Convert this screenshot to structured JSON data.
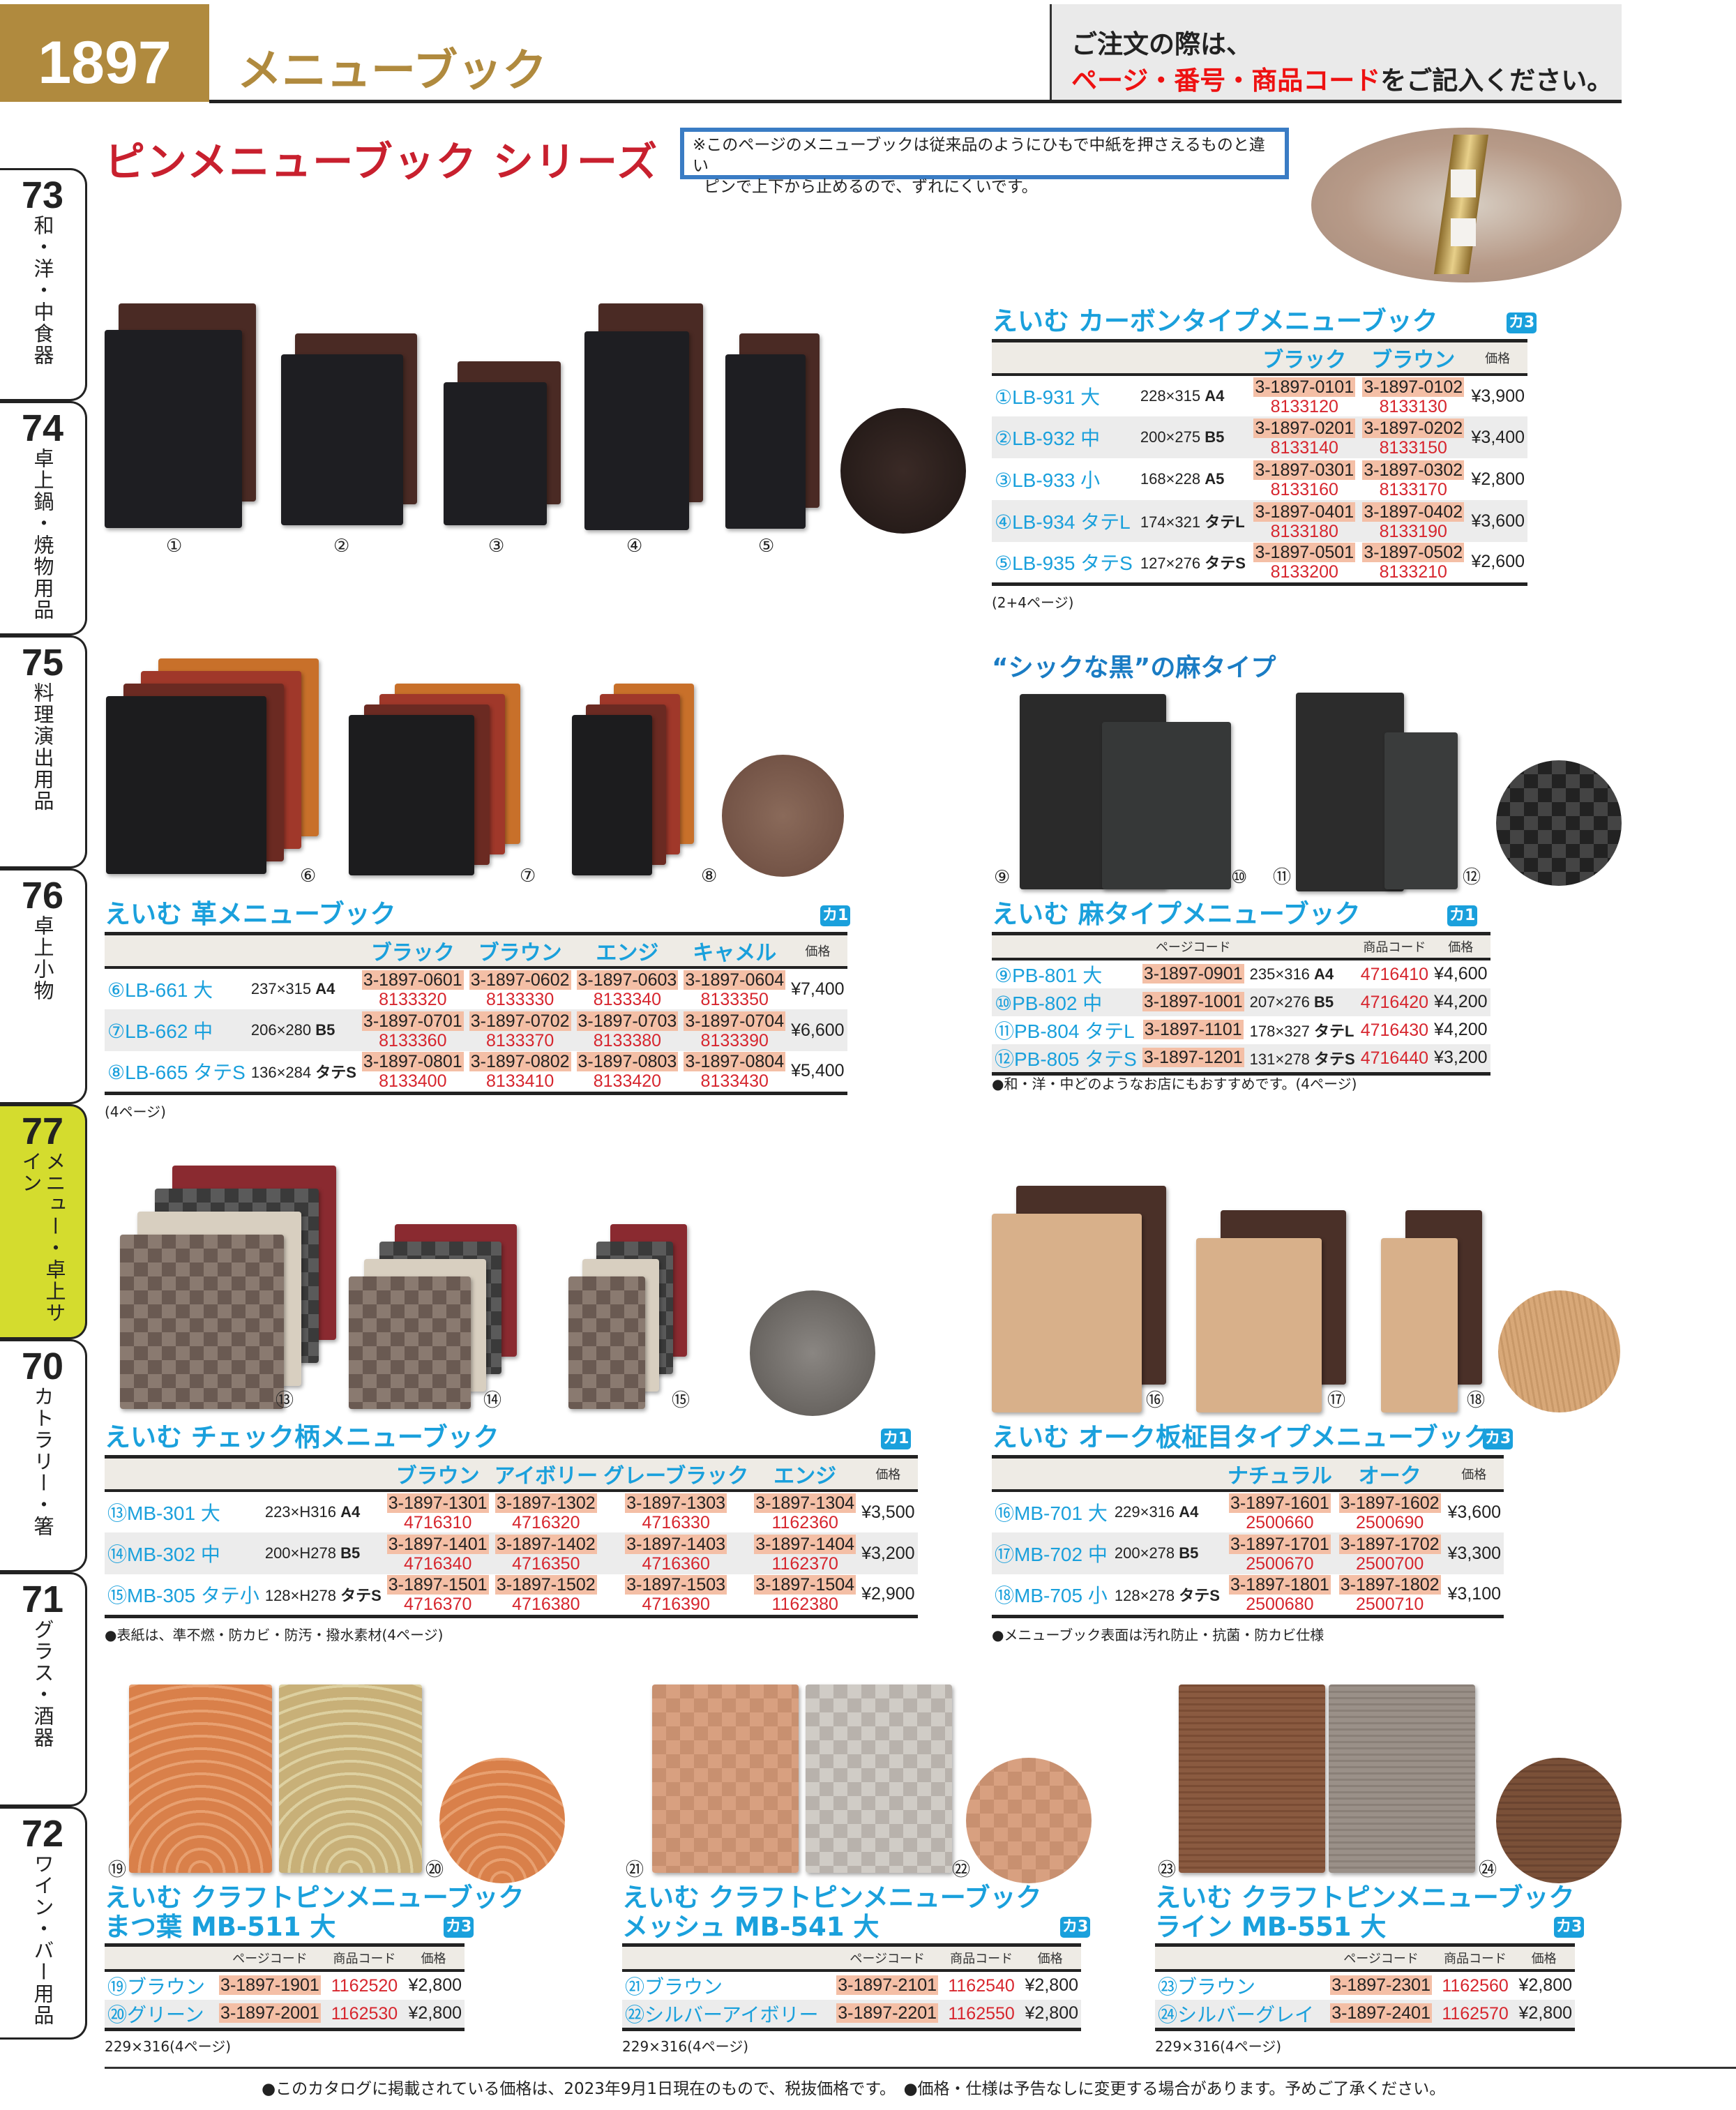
{
  "header": {
    "page_number": "1897",
    "title": "メニューブック",
    "notice_line1": "ご注文の際は、",
    "notice_red": "ページ・番号・商品コード",
    "notice_rest": "をご記入ください。"
  },
  "series": {
    "title": "ピンメニューブック シリーズ",
    "note_line1": "※このページのメニューブックは従来品のようにひもで中紙を押さえるものと違い",
    "note_line2": "ピンで上下から止めるので、ずれにくいです。"
  },
  "side_tabs": [
    {
      "num": "73",
      "label": "和・洋・中食器"
    },
    {
      "num": "74",
      "label": "卓上鍋・焼物用品"
    },
    {
      "num": "75",
      "label": "料理演出用品"
    },
    {
      "num": "76",
      "label": "卓上小物"
    },
    {
      "num": "77",
      "label": "メニュー・卓上サイン",
      "active": true
    },
    {
      "num": "70",
      "label": "カトラリー・箸"
    },
    {
      "num": "71",
      "label": "グラス・酒器"
    },
    {
      "num": "72",
      "label": "ワイン・バー用品"
    }
  ],
  "accent_colors": {
    "title_cyan": "#1aa0dc",
    "code_red": "#d7262e",
    "page_code_bg": "#f4bfa6",
    "gold": "#b08a3e",
    "active_tab": "#d4dc2e"
  },
  "image_labels": [
    "①",
    "②",
    "③",
    "④",
    "⑤",
    "⑥",
    "⑦",
    "⑧",
    "⑨",
    "⑩",
    "⑪",
    "⑫",
    "⑬",
    "⑭",
    "⑮",
    "⑯",
    "⑰",
    "⑱",
    "⑲",
    "⑳",
    "㉑",
    "㉒",
    "㉓",
    "㉔"
  ],
  "linen_heading": "“シックな黒”の麻タイプ",
  "sections": {
    "carbon": {
      "title": "えいむ カーボンタイプメニューブック",
      "badge": "カ3",
      "type": "multi",
      "columns": [
        "ブラック",
        "ブラウン"
      ],
      "price_header": "価格",
      "rows": [
        {
          "no": "①",
          "model": "LB-931 大",
          "size": "228×315",
          "fmt": "A4",
          "codes": [
            [
              "3-1897-0101",
              "8133120"
            ],
            [
              "3-1897-0102",
              "8133130"
            ]
          ],
          "price": "¥3,900"
        },
        {
          "no": "②",
          "model": "LB-932 中",
          "size": "200×275",
          "fmt": "B5",
          "codes": [
            [
              "3-1897-0201",
              "8133140"
            ],
            [
              "3-1897-0202",
              "8133150"
            ]
          ],
          "price": "¥3,400"
        },
        {
          "no": "③",
          "model": "LB-933 小",
          "size": "168×228",
          "fmt": "A5",
          "codes": [
            [
              "3-1897-0301",
              "8133160"
            ],
            [
              "3-1897-0302",
              "8133170"
            ]
          ],
          "price": "¥2,800"
        },
        {
          "no": "④",
          "model": "LB-934 タテL",
          "size": "174×321",
          "fmt": "タテL",
          "codes": [
            [
              "3-1897-0401",
              "8133180"
            ],
            [
              "3-1897-0402",
              "8133190"
            ]
          ],
          "price": "¥3,600"
        },
        {
          "no": "⑤",
          "model": "LB-935 タテS",
          "size": "127×276",
          "fmt": "タテS",
          "codes": [
            [
              "3-1897-0501",
              "8133200"
            ],
            [
              "3-1897-0502",
              "8133210"
            ]
          ],
          "price": "¥2,600"
        }
      ],
      "note": "(2+4ページ)"
    },
    "leather": {
      "title": "えいむ 革メニューブック",
      "badge": "カ1",
      "type": "multi",
      "columns": [
        "ブラック",
        "ブラウン",
        "エンジ",
        "キャメル"
      ],
      "price_header": "価格",
      "rows": [
        {
          "no": "⑥",
          "model": "LB-661 大",
          "size": "237×315",
          "fmt": "A4",
          "codes": [
            [
              "3-1897-0601",
              "8133320"
            ],
            [
              "3-1897-0602",
              "8133330"
            ],
            [
              "3-1897-0603",
              "8133340"
            ],
            [
              "3-1897-0604",
              "8133350"
            ]
          ],
          "price": "¥7,400"
        },
        {
          "no": "⑦",
          "model": "LB-662 中",
          "size": "206×280",
          "fmt": "B5",
          "codes": [
            [
              "3-1897-0701",
              "8133360"
            ],
            [
              "3-1897-0702",
              "8133370"
            ],
            [
              "3-1897-0703",
              "8133380"
            ],
            [
              "3-1897-0704",
              "8133390"
            ]
          ],
          "price": "¥6,600"
        },
        {
          "no": "⑧",
          "model": "LB-665 タテS",
          "size": "136×284",
          "fmt": "タテS",
          "codes": [
            [
              "3-1897-0801",
              "8133400"
            ],
            [
              "3-1897-0802",
              "8133410"
            ],
            [
              "3-1897-0803",
              "8133420"
            ],
            [
              "3-1897-0804",
              "8133430"
            ]
          ],
          "price": "¥5,400"
        }
      ],
      "note": "(4ページ)"
    },
    "linen": {
      "title": "えいむ 麻タイプメニューブック",
      "badge": "カ1",
      "type": "linen",
      "headers": [
        "ページコード",
        "商品コード",
        "価格"
      ],
      "rows": [
        {
          "no": "⑨",
          "model": "PB-801 大",
          "page_code": "3-1897-0901",
          "size": "235×316",
          "fmt": "A4",
          "product_code": "4716410",
          "price": "¥4,600"
        },
        {
          "no": "⑩",
          "model": "PB-802 中",
          "page_code": "3-1897-1001",
          "size": "207×276",
          "fmt": "B5",
          "product_code": "4716420",
          "price": "¥4,200"
        },
        {
          "no": "⑪",
          "model": "PB-804 タテL",
          "page_code": "3-1897-1101",
          "size": "178×327",
          "fmt": "タテL",
          "product_code": "4716430",
          "price": "¥4,200"
        },
        {
          "no": "⑫",
          "model": "PB-805 タテS",
          "page_code": "3-1897-1201",
          "size": "131×278",
          "fmt": "タテS",
          "product_code": "4716440",
          "price": "¥3,200"
        }
      ],
      "note": "●和・洋・中どのようなお店にもおすすめです。(4ページ)"
    },
    "check": {
      "title": "えいむ チェック柄メニューブック",
      "badge": "カ1",
      "type": "multi",
      "columns": [
        "ブラウン",
        "アイボリー",
        "グレーブラック",
        "エンジ"
      ],
      "price_header": "価格",
      "rows": [
        {
          "no": "⑬",
          "model": "MB-301 大",
          "size": "223×H316",
          "fmt": "A4",
          "codes": [
            [
              "3-1897-1301",
              "4716310"
            ],
            [
              "3-1897-1302",
              "4716320"
            ],
            [
              "3-1897-1303",
              "4716330"
            ],
            [
              "3-1897-1304",
              "1162360"
            ]
          ],
          "price": "¥3,500"
        },
        {
          "no": "⑭",
          "model": "MB-302 中",
          "size": "200×H278",
          "fmt": "B5",
          "codes": [
            [
              "3-1897-1401",
              "4716340"
            ],
            [
              "3-1897-1402",
              "4716350"
            ],
            [
              "3-1897-1403",
              "4716360"
            ],
            [
              "3-1897-1404",
              "1162370"
            ]
          ],
          "price": "¥3,200"
        },
        {
          "no": "⑮",
          "model": "MB-305 タテ小",
          "size": "128×H278",
          "fmt": "タテS",
          "codes": [
            [
              "3-1897-1501",
              "4716370"
            ],
            [
              "3-1897-1502",
              "4716380"
            ],
            [
              "3-1897-1503",
              "4716390"
            ],
            [
              "3-1897-1504",
              "1162380"
            ]
          ],
          "price": "¥2,900"
        }
      ],
      "note": "●表紙は、準不燃・防カビ・防汚・撥水素材(4ページ)"
    },
    "oak": {
      "title": "えいむ オーク板柾目タイプメニューブック",
      "badge": "カ3",
      "type": "multi",
      "columns": [
        "ナチュラル",
        "オーク"
      ],
      "price_header": "価格",
      "rows": [
        {
          "no": "⑯",
          "model": "MB-701 大",
          "size": "229×316",
          "fmt": "A4",
          "codes": [
            [
              "3-1897-1601",
              "2500660"
            ],
            [
              "3-1897-1602",
              "2500690"
            ]
          ],
          "price": "¥3,600"
        },
        {
          "no": "⑰",
          "model": "MB-702 中",
          "size": "200×278",
          "fmt": "B5",
          "codes": [
            [
              "3-1897-1701",
              "2500670"
            ],
            [
              "3-1897-1702",
              "2500700"
            ]
          ],
          "price": "¥3,300"
        },
        {
          "no": "⑱",
          "model": "MB-705 小",
          "size": "128×278",
          "fmt": "タテS",
          "codes": [
            [
              "3-1897-1801",
              "2500680"
            ],
            [
              "3-1897-1802",
              "2500710"
            ]
          ],
          "price": "¥3,100"
        }
      ],
      "note": "●メニューブック表面は汚れ防止・抗菌・防カビ仕様"
    },
    "craft1": {
      "title": "えいむ クラフトピンメニューブック",
      "subtitle": "まつ葉 MB-511 大",
      "badge": "カ3",
      "type": "craft",
      "headers": [
        "ページコード",
        "商品コード",
        "価格"
      ],
      "rows": [
        {
          "no": "⑲",
          "color": "ブラウン",
          "page_code": "3-1897-1901",
          "product_code": "1162520",
          "price": "¥2,800"
        },
        {
          "no": "⑳",
          "color": "グリーン",
          "page_code": "3-1897-2001",
          "product_code": "1162530",
          "price": "¥2,800"
        }
      ],
      "note": "229×316(4ページ)"
    },
    "craft2": {
      "title": "えいむ クラフトピンメニューブック",
      "subtitle": "メッシュ MB-541 大",
      "badge": "カ3",
      "type": "craft",
      "headers": [
        "ページコード",
        "商品コード",
        "価格"
      ],
      "rows": [
        {
          "no": "㉑",
          "color": "ブラウン",
          "page_code": "3-1897-2101",
          "product_code": "1162540",
          "price": "¥2,800"
        },
        {
          "no": "㉒",
          "color": "シルバーアイボリー",
          "page_code": "3-1897-2201",
          "product_code": "1162550",
          "price": "¥2,800"
        }
      ],
      "note": "229×316(4ページ)"
    },
    "craft3": {
      "title": "えいむ クラフトピンメニューブック",
      "subtitle": "ライン MB-551 大",
      "badge": "カ3",
      "type": "craft",
      "headers": [
        "ページコード",
        "商品コード",
        "価格"
      ],
      "rows": [
        {
          "no": "㉓",
          "color": "ブラウン",
          "page_code": "3-1897-2301",
          "product_code": "1162560",
          "price": "¥2,800"
        },
        {
          "no": "㉔",
          "color": "シルバーグレイ",
          "page_code": "3-1897-2401",
          "product_code": "1162570",
          "price": "¥2,800"
        }
      ],
      "note": "229×316(4ページ)"
    }
  },
  "footer": "●このカタログに掲載されている価格は、2023年9月1日現在のもので、税抜価格です。　●価格・仕様は予告なしに変更する場合があります。予めご了承ください。"
}
